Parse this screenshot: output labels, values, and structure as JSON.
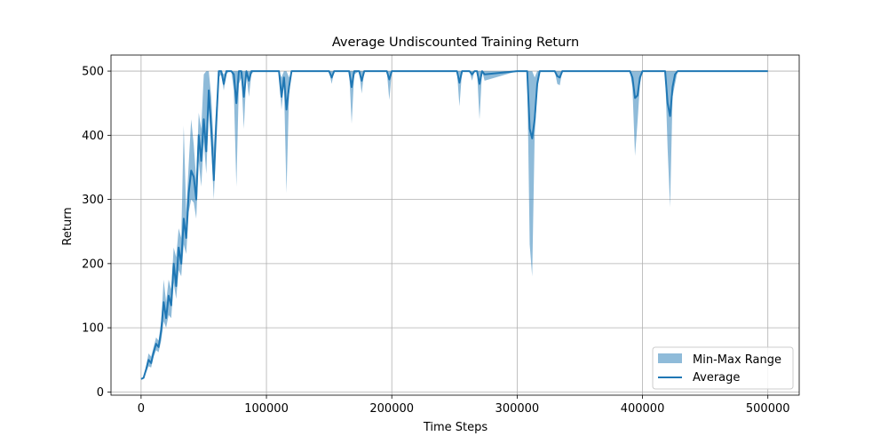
{
  "chart_data": {
    "type": "line",
    "title": "Average Undiscounted Training Return",
    "xlabel": "Time Steps",
    "ylabel": "Return",
    "xlim": [
      -24000,
      525000
    ],
    "ylim": [
      -5,
      525
    ],
    "xticks": [
      0,
      100000,
      200000,
      300000,
      400000,
      500000
    ],
    "xtick_labels": [
      "0",
      "100000",
      "200000",
      "300000",
      "400000",
      "500000"
    ],
    "yticks": [
      0,
      100,
      200,
      300,
      400,
      500
    ],
    "ytick_labels": [
      "0",
      "100",
      "200",
      "300",
      "400",
      "500"
    ],
    "grid": true,
    "legend_position": "bottom-right",
    "legend": [
      "Min-Max Range",
      "Average"
    ],
    "colors": {
      "line": "#1f77b4",
      "band": "#1f77b4",
      "grid": "#b0b0b0"
    },
    "series": [
      {
        "name": "Average",
        "x": [
          0,
          2000,
          4000,
          6000,
          8000,
          10000,
          12000,
          14000,
          16000,
          18000,
          20000,
          22000,
          24000,
          26000,
          28000,
          30000,
          32000,
          34000,
          36000,
          38000,
          40000,
          42000,
          44000,
          46000,
          48000,
          50000,
          52000,
          54000,
          56000,
          58000,
          60000,
          62000,
          64000,
          66000,
          68000,
          70000,
          72000,
          74000,
          76000,
          78000,
          80000,
          82000,
          84000,
          86000,
          88000,
          90000,
          100000,
          110000,
          112000,
          114000,
          116000,
          118000,
          120000,
          150000,
          152000,
          154000,
          166000,
          168000,
          170000,
          174000,
          176000,
          178000,
          196000,
          198000,
          200000,
          252000,
          254000,
          256000,
          262000,
          264000,
          266000,
          268000,
          270000,
          272000,
          274000,
          300000,
          308000,
          310000,
          312000,
          314000,
          316000,
          318000,
          330000,
          332000,
          334000,
          336000,
          390000,
          392000,
          394000,
          396000,
          398000,
          400000,
          418000,
          420000,
          422000,
          424000,
          426000,
          428000,
          500000
        ],
        "avg": [
          20,
          22,
          35,
          50,
          45,
          62,
          75,
          70,
          95,
          140,
          115,
          150,
          135,
          200,
          165,
          225,
          200,
          270,
          240,
          310,
          345,
          335,
          300,
          400,
          360,
          425,
          375,
          470,
          410,
          330,
          420,
          500,
          500,
          480,
          500,
          500,
          500,
          495,
          450,
          500,
          500,
          460,
          500,
          485,
          500,
          500,
          500,
          500,
          460,
          490,
          440,
          475,
          500,
          500,
          490,
          500,
          500,
          475,
          500,
          500,
          485,
          500,
          500,
          487,
          500,
          500,
          482,
          500,
          500,
          495,
          500,
          500,
          480,
          500,
          495,
          500,
          500,
          410,
          395,
          425,
          480,
          500,
          500,
          492,
          490,
          500,
          500,
          490,
          458,
          462,
          490,
          500,
          500,
          450,
          430,
          475,
          495,
          500,
          500
        ],
        "min": [
          20,
          22,
          30,
          40,
          38,
          55,
          65,
          62,
          80,
          110,
          100,
          120,
          115,
          170,
          145,
          190,
          180,
          230,
          215,
          280,
          300,
          295,
          270,
          360,
          320,
          390,
          340,
          440,
          380,
          300,
          400,
          490,
          495,
          470,
          495,
          500,
          500,
          470,
          320,
          480,
          490,
          410,
          495,
          460,
          495,
          500,
          500,
          500,
          440,
          480,
          310,
          465,
          500,
          500,
          480,
          500,
          500,
          418,
          495,
          500,
          465,
          500,
          500,
          455,
          500,
          500,
          445,
          500,
          500,
          485,
          500,
          500,
          425,
          500,
          485,
          500,
          500,
          230,
          180,
          400,
          470,
          500,
          500,
          480,
          478,
          500,
          500,
          475,
          368,
          420,
          480,
          500,
          500,
          380,
          288,
          460,
          480,
          500,
          500
        ],
        "max": [
          20,
          22,
          40,
          60,
          55,
          70,
          85,
          80,
          110,
          175,
          140,
          175,
          160,
          225,
          210,
          255,
          240,
          415,
          280,
          355,
          425,
          385,
          330,
          435,
          410,
          495,
          500,
          500,
          460,
          380,
          450,
          500,
          500,
          495,
          500,
          500,
          500,
          500,
          500,
          500,
          500,
          500,
          500,
          500,
          500,
          500,
          500,
          500,
          490,
          500,
          500,
          490,
          500,
          500,
          500,
          500,
          500,
          500,
          500,
          500,
          500,
          500,
          500,
          500,
          500,
          500,
          500,
          500,
          500,
          500,
          500,
          500,
          500,
          500,
          500,
          500,
          500,
          500,
          500,
          490,
          500,
          500,
          500,
          500,
          500,
          500,
          500,
          500,
          500,
          500,
          500,
          500,
          500,
          500,
          500,
          500,
          500,
          500,
          500
        ]
      }
    ]
  }
}
